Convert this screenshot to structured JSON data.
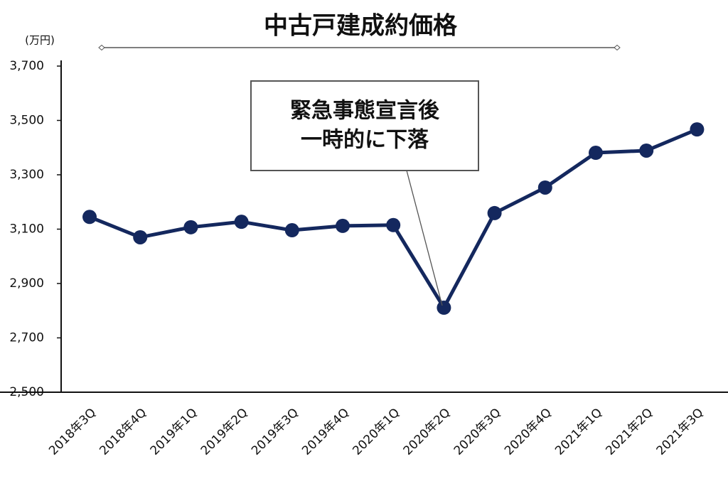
{
  "chart_data": {
    "type": "line",
    "title": "中古戸建成約価格",
    "y_label": "(万円)",
    "annotation": [
      "緊急事態宣言後",
      "一時的に下落"
    ],
    "categories": [
      "2018年3Q",
      "2018年4Q",
      "2019年1Q",
      "2019年2Q",
      "2019年3Q",
      "2019年4Q",
      "2020年1Q",
      "2020年2Q",
      "2020年3Q",
      "2020年4Q",
      "2021年1Q",
      "2021年2Q",
      "2021年3Q"
    ],
    "series": [
      {
        "color": "#14285e",
        "values": [
          3145,
          3070,
          3107,
          3127,
          3096,
          3112,
          3115,
          2811,
          3159,
          3253,
          3381,
          3389,
          3467
        ]
      }
    ],
    "ylim": [
      2500,
      3700
    ],
    "yticks": [
      {
        "value": 2500,
        "label": "2,500"
      },
      {
        "value": 2700,
        "label": "2,700"
      },
      {
        "value": 2900,
        "label": "2,900"
      },
      {
        "value": 3100,
        "label": "3,100"
      },
      {
        "value": 3300,
        "label": "3,300"
      },
      {
        "value": 3500,
        "label": "3,500"
      },
      {
        "value": 3700,
        "label": "3,700"
      }
    ],
    "annotation_color": "#ee1111",
    "title_color": "#2a2a8a"
  }
}
